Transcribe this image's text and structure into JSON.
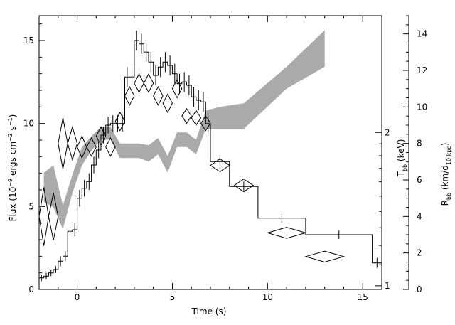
{
  "chart_data": {
    "type": "line",
    "title": "",
    "xlabel": "Time (s)",
    "xlim": [
      -2,
      16
    ],
    "xticks": [
      0,
      5,
      10,
      15
    ],
    "left_axis": {
      "label": "Flux (10^-9 ergs cm^-2 s^-1)",
      "label_parts": [
        "Flux (10",
        "−9",
        " ergs cm",
        "−2",
        " s",
        "−1",
        ")"
      ],
      "ylim": [
        0,
        16.5
      ],
      "ticks": [
        0,
        5,
        10,
        15
      ]
    },
    "right_axis_T": {
      "label": "Tbb (keV)",
      "label_parts": [
        "T",
        "bb",
        " (keV)"
      ],
      "scale": "log",
      "ticks": [
        1,
        2
      ]
    },
    "right_axis_R": {
      "label": "Rbb (km/d10 kpc)",
      "label_parts": [
        "R",
        "bb",
        " (km/d",
        "10 kpc",
        ")"
      ],
      "ylim": [
        0,
        15
      ],
      "ticks": [
        0,
        2,
        4,
        6,
        8,
        10,
        12,
        14
      ]
    },
    "series": [
      {
        "kind": "step",
        "color": "#000000",
        "bins": [
          {
            "x0": -2.0,
            "x1": -1.75,
            "y": 0.7,
            "err": 0.2
          },
          {
            "x0": -1.75,
            "x1": -1.5,
            "y": 0.8,
            "err": 0.2
          },
          {
            "x0": -1.5,
            "x1": -1.25,
            "y": 1.0,
            "err": 0.2
          },
          {
            "x0": -1.25,
            "x1": -1.0,
            "y": 1.2,
            "err": 0.2
          },
          {
            "x0": -1.0,
            "x1": -0.75,
            "y": 1.7,
            "err": 0.3
          },
          {
            "x0": -0.75,
            "x1": -0.5,
            "y": 2.0,
            "err": 0.3
          },
          {
            "x0": -0.5,
            "x1": -0.25,
            "y": 3.5,
            "err": 0.4
          },
          {
            "x0": -0.25,
            "x1": 0.0,
            "y": 3.6,
            "err": 0.4
          },
          {
            "x0": 0.0,
            "x1": 0.25,
            "y": 5.5,
            "err": 0.5
          },
          {
            "x0": 0.25,
            "x1": 0.5,
            "y": 6.1,
            "err": 0.5
          },
          {
            "x0": 0.5,
            "x1": 0.75,
            "y": 6.5,
            "err": 0.5
          },
          {
            "x0": 0.75,
            "x1": 1.0,
            "y": 7.5,
            "err": 0.5
          },
          {
            "x0": 1.0,
            "x1": 1.25,
            "y": 8.4,
            "err": 0.5
          },
          {
            "x0": 1.25,
            "x1": 1.5,
            "y": 9.3,
            "err": 0.5
          },
          {
            "x0": 1.5,
            "x1": 1.75,
            "y": 9.9,
            "err": 0.5
          },
          {
            "x0": 1.75,
            "x1": 2.0,
            "y": 10.0,
            "err": 0.5
          },
          {
            "x0": 2.0,
            "x1": 2.25,
            "y": 10.0,
            "err": 0.5
          },
          {
            "x0": 2.25,
            "x1": 2.5,
            "y": 10.0,
            "err": 0.5
          },
          {
            "x0": 2.5,
            "x1": 2.75,
            "y": 12.8,
            "err": 0.6
          },
          {
            "x0": 2.75,
            "x1": 3.0,
            "y": 12.8,
            "err": 0.6
          },
          {
            "x0": 3.0,
            "x1": 3.25,
            "y": 15.0,
            "err": 0.6
          },
          {
            "x0": 3.25,
            "x1": 3.5,
            "y": 14.8,
            "err": 0.6
          },
          {
            "x0": 3.5,
            "x1": 3.75,
            "y": 14.3,
            "err": 0.6
          },
          {
            "x0": 3.75,
            "x1": 4.0,
            "y": 13.7,
            "err": 0.6
          },
          {
            "x0": 4.0,
            "x1": 4.25,
            "y": 12.9,
            "err": 0.6
          },
          {
            "x0": 4.25,
            "x1": 4.5,
            "y": 13.4,
            "err": 0.6
          },
          {
            "x0": 4.5,
            "x1": 4.75,
            "y": 13.7,
            "err": 0.6
          },
          {
            "x0": 4.75,
            "x1": 5.0,
            "y": 13.5,
            "err": 0.6
          },
          {
            "x0": 5.0,
            "x1": 5.25,
            "y": 13.0,
            "err": 0.6
          },
          {
            "x0": 5.25,
            "x1": 5.5,
            "y": 12.4,
            "err": 0.6
          },
          {
            "x0": 5.5,
            "x1": 5.75,
            "y": 12.5,
            "err": 0.6
          },
          {
            "x0": 5.75,
            "x1": 6.0,
            "y": 12.3,
            "err": 0.6
          },
          {
            "x0": 6.0,
            "x1": 6.25,
            "y": 11.6,
            "err": 0.6
          },
          {
            "x0": 6.25,
            "x1": 6.5,
            "y": 11.4,
            "err": 0.6
          },
          {
            "x0": 6.5,
            "x1": 6.75,
            "y": 11.3,
            "err": 0.6
          },
          {
            "x0": 6.75,
            "x1": 7.0,
            "y": 10.0,
            "err": 0.6
          },
          {
            "x0": 7.0,
            "x1": 8.0,
            "y": 7.7,
            "err": 0.4
          },
          {
            "x0": 8.0,
            "x1": 9.5,
            "y": 6.2,
            "err": 0.3
          },
          {
            "x0": 9.5,
            "x1": 12.0,
            "y": 4.3,
            "err": 0.25
          },
          {
            "x0": 12.0,
            "x1": 15.5,
            "y": 3.3,
            "err": 0.25
          },
          {
            "x0": 15.5,
            "x1": 16.0,
            "y": 1.6,
            "err": 0.3
          }
        ]
      },
      {
        "kind": "band",
        "axis": "right_axis_R",
        "color": "#aaaaaa",
        "x": [
          -1.75,
          -1.25,
          -0.75,
          -0.25,
          0.25,
          0.75,
          1.25,
          1.75,
          2.25,
          2.75,
          3.25,
          3.75,
          4.25,
          4.75,
          5.25,
          5.75,
          6.25,
          6.75,
          7.5,
          8.75,
          11.0,
          13.0
        ],
        "lower": [
          4.8,
          4.5,
          3.3,
          5.3,
          6.8,
          7.6,
          8.2,
          8.2,
          7.2,
          7.2,
          7.2,
          7.0,
          7.4,
          6.4,
          7.8,
          7.8,
          7.4,
          8.8,
          8.8,
          8.8,
          11.0,
          12.2
        ],
        "upper": [
          6.4,
          6.8,
          4.6,
          6.3,
          7.8,
          8.4,
          8.9,
          8.9,
          8.0,
          8.0,
          8.0,
          7.9,
          8.3,
          7.3,
          8.6,
          8.6,
          8.2,
          9.8,
          10.0,
          10.2,
          12.2,
          14.2
        ]
      },
      {
        "kind": "diamonds",
        "axis": "right_axis_R",
        "color": "#000000",
        "points": [
          {
            "x": -1.75,
            "y": 4.0,
            "xerr": 0.25,
            "yerr": 1.6
          },
          {
            "x": -1.25,
            "y": 4.0,
            "xerr": 0.25,
            "yerr": 1.3
          },
          {
            "x": -0.75,
            "y": 8.0,
            "xerr": 0.25,
            "yerr": 1.4
          },
          {
            "x": -0.25,
            "y": 8.0,
            "xerr": 0.25,
            "yerr": 0.9
          },
          {
            "x": 0.25,
            "y": 7.8,
            "xerr": 0.25,
            "yerr": 0.6
          },
          {
            "x": 0.75,
            "y": 7.8,
            "xerr": 0.25,
            "yerr": 0.5
          },
          {
            "x": 1.25,
            "y": 8.4,
            "xerr": 0.25,
            "yerr": 0.5
          },
          {
            "x": 1.75,
            "y": 7.8,
            "xerr": 0.25,
            "yerr": 0.5
          },
          {
            "x": 2.25,
            "y": 9.2,
            "xerr": 0.25,
            "yerr": 0.5
          },
          {
            "x": 2.75,
            "y": 10.6,
            "xerr": 0.25,
            "yerr": 0.5
          },
          {
            "x": 3.25,
            "y": 11.3,
            "xerr": 0.25,
            "yerr": 0.5
          },
          {
            "x": 3.75,
            "y": 11.3,
            "xerr": 0.25,
            "yerr": 0.5
          },
          {
            "x": 4.25,
            "y": 10.6,
            "xerr": 0.25,
            "yerr": 0.5
          },
          {
            "x": 4.75,
            "y": 10.2,
            "xerr": 0.25,
            "yerr": 0.5
          },
          {
            "x": 5.25,
            "y": 11.0,
            "xerr": 0.25,
            "yerr": 0.5
          },
          {
            "x": 5.75,
            "y": 9.5,
            "xerr": 0.25,
            "yerr": 0.4
          },
          {
            "x": 6.25,
            "y": 9.4,
            "xerr": 0.25,
            "yerr": 0.4
          },
          {
            "x": 6.75,
            "y": 9.1,
            "xerr": 0.25,
            "yerr": 0.4
          },
          {
            "x": 7.5,
            "y": 6.8,
            "xerr": 0.5,
            "yerr": 0.35
          },
          {
            "x": 8.75,
            "y": 5.7,
            "xerr": 0.5,
            "yerr": 0.35
          },
          {
            "x": 11.0,
            "y": 3.1,
            "xerr": 1.0,
            "yerr": 0.3
          },
          {
            "x": 13.0,
            "y": 1.8,
            "xerr": 1.0,
            "yerr": 0.3
          }
        ]
      }
    ]
  }
}
